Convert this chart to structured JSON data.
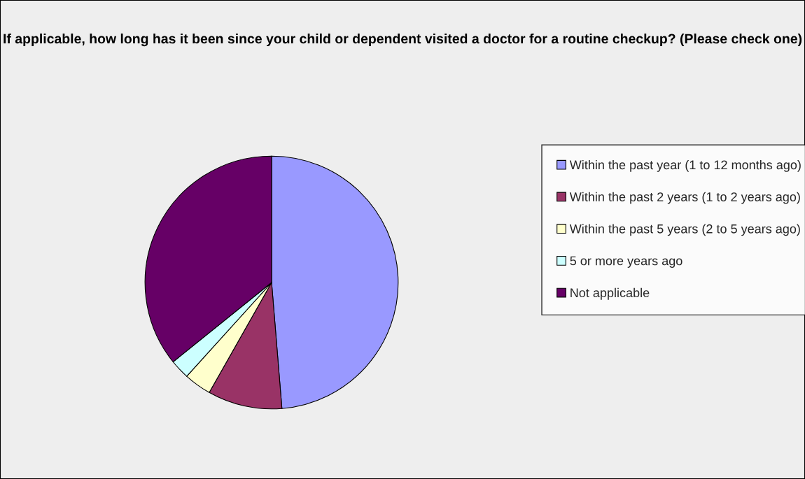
{
  "chart_data": {
    "type": "pie",
    "title": "If applicable, how long has it been since your child or dependent visited a doctor for a routine checkup? (Please check one)",
    "categories": [
      "Within the past year (1 to 12 months ago)",
      "Within the past 2 years (1 to 2 years ago)",
      "Within the past 5 years (2 to 5 years ago)",
      "5 or more years ago",
      "Not applicable"
    ],
    "values": [
      48.7,
      9.5,
      3.5,
      2.5,
      35.8
    ],
    "colors": [
      "#9999ff",
      "#993366",
      "#ffffcc",
      "#ccffff",
      "#660066"
    ],
    "legend": "right"
  }
}
